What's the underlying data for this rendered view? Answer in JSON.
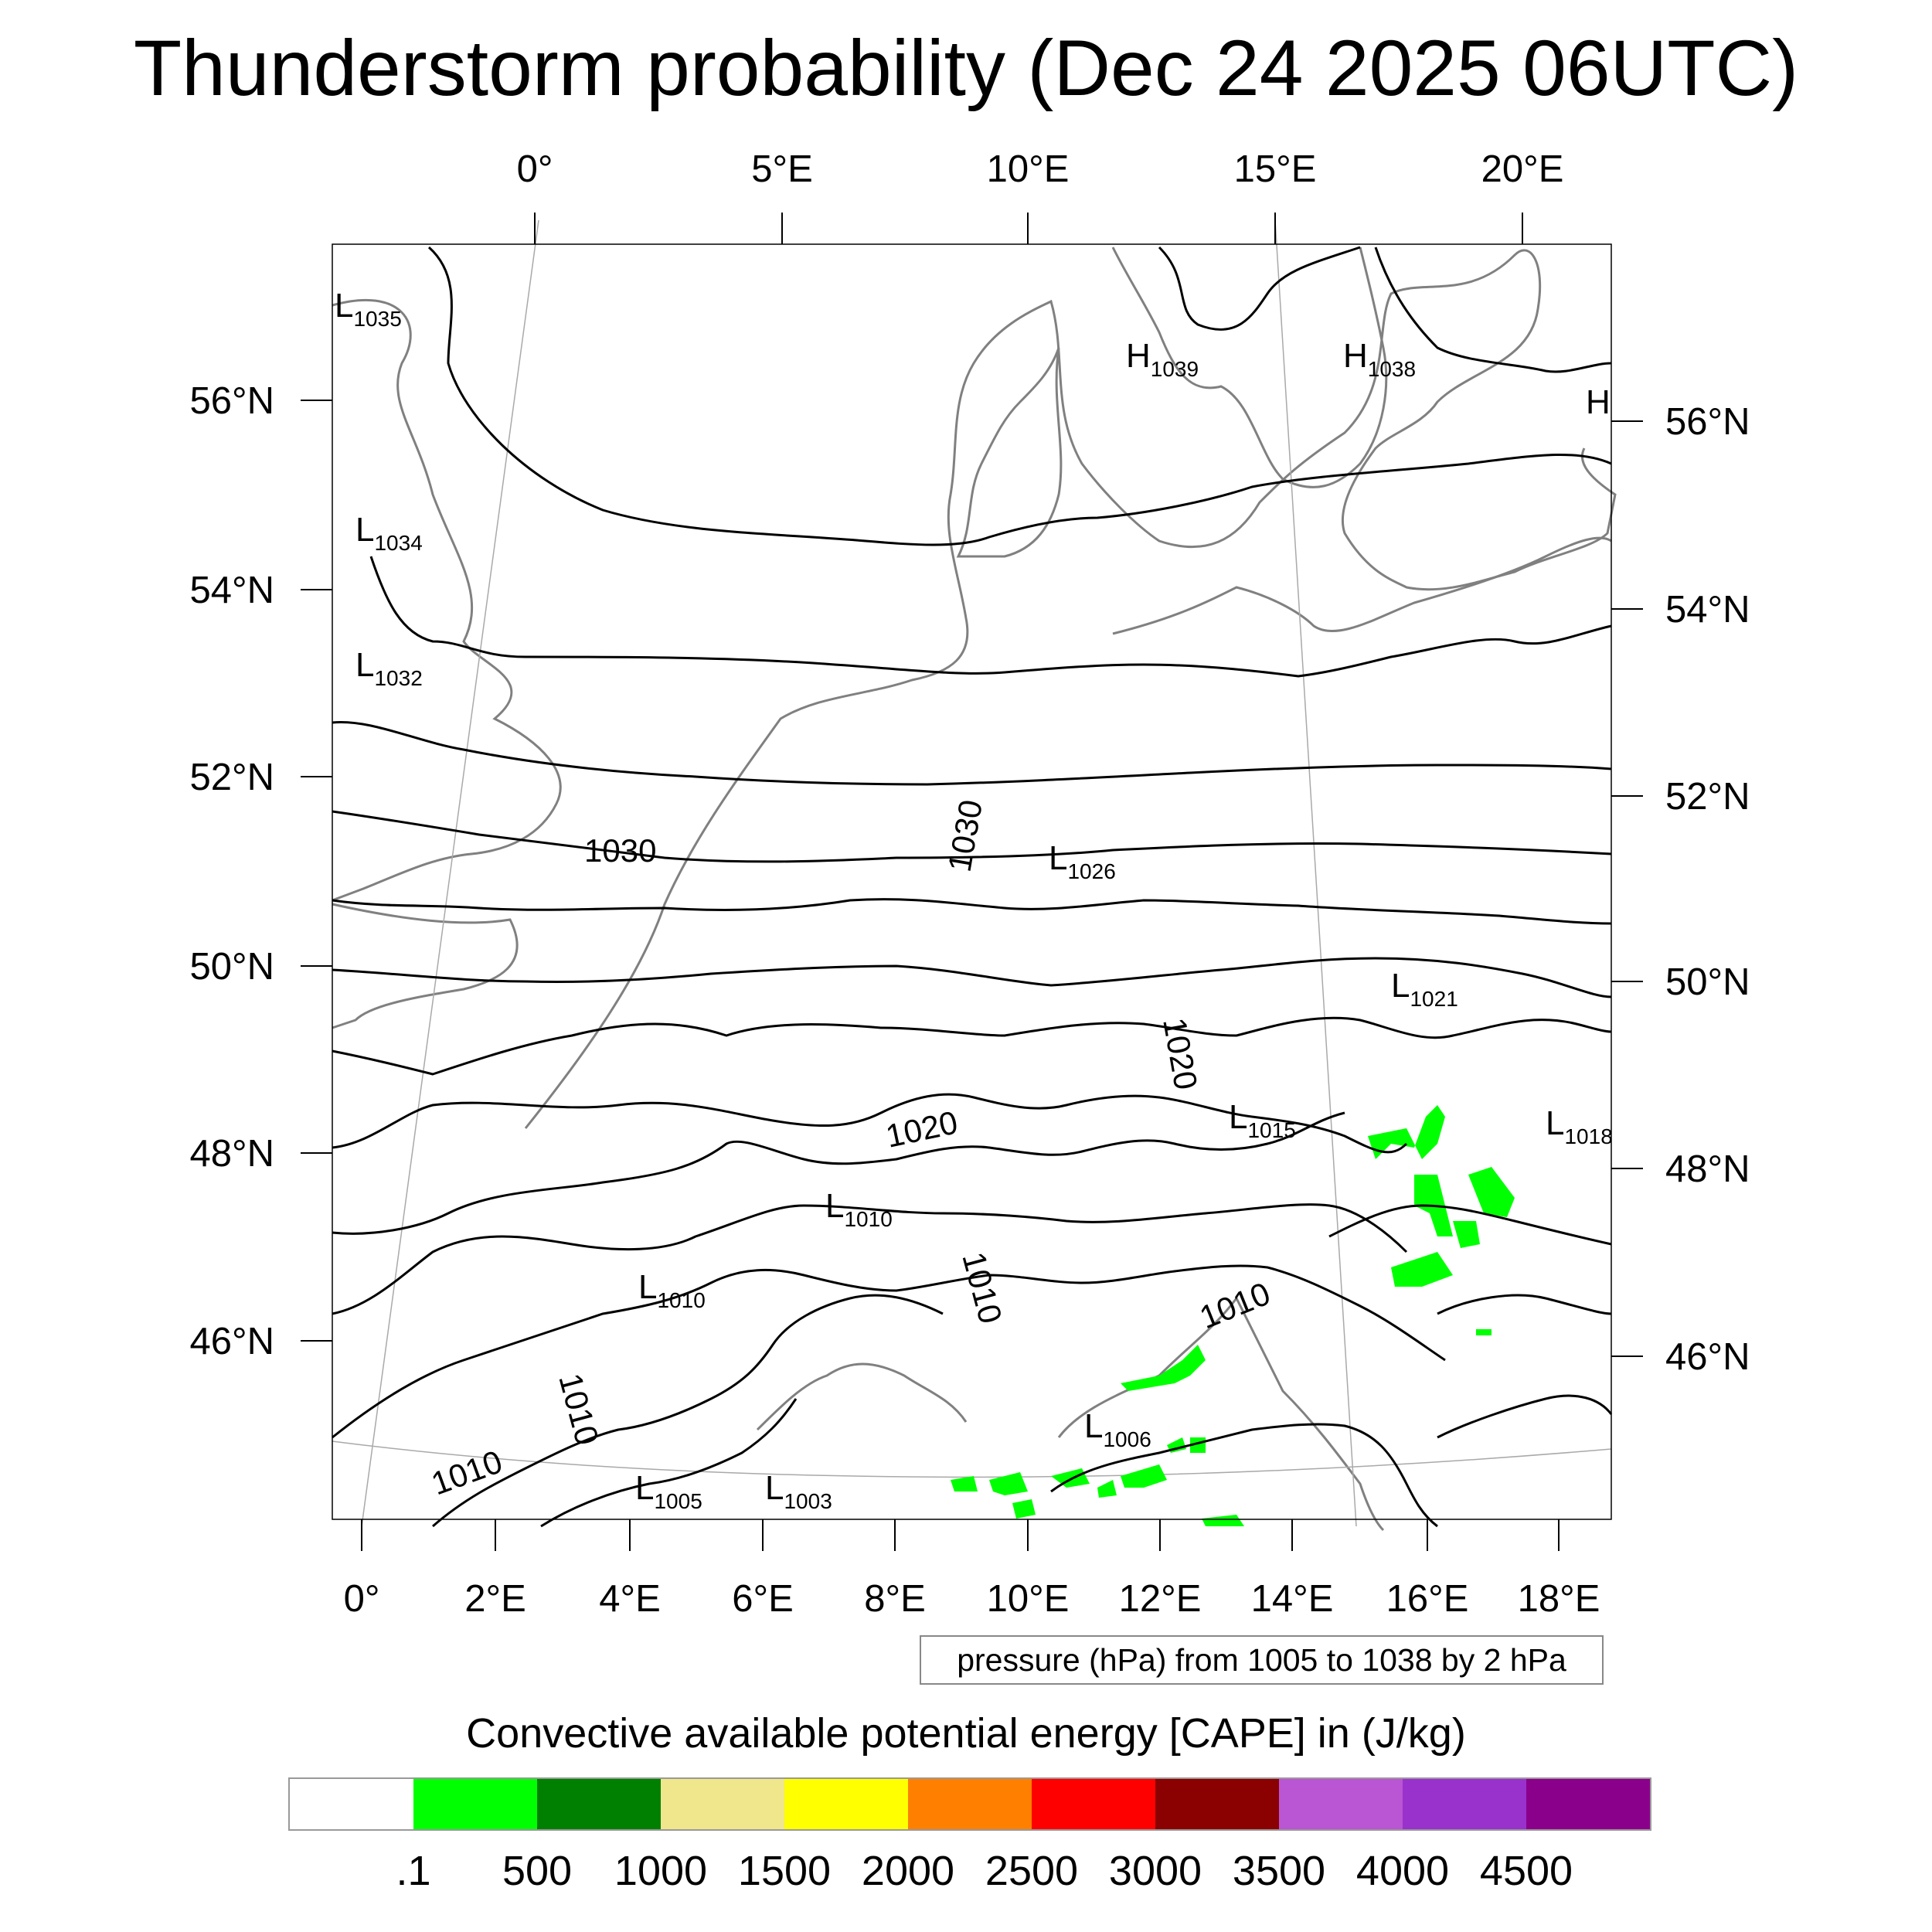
{
  "title": "Thunderstorm probability (Dec 24 2025 06UTC)",
  "top_axis_labels": [
    "0°",
    "5°E",
    "10°E",
    "15°E",
    "20°E"
  ],
  "bottom_axis_labels": [
    "0°",
    "2°E",
    "4°E",
    "6°E",
    "8°E",
    "10°E",
    "12°E",
    "14°E",
    "16°E",
    "18°E"
  ],
  "left_axis_labels": [
    "56°N",
    "54°N",
    "52°N",
    "50°N",
    "48°N",
    "46°N"
  ],
  "right_axis_labels": [
    "56°N",
    "54°N",
    "52°N",
    "50°N",
    "48°N",
    "46°N"
  ],
  "pressure_systems": [
    {
      "type": "L",
      "value": "1035"
    },
    {
      "type": "L",
      "value": "1034"
    },
    {
      "type": "L",
      "value": "1032"
    },
    {
      "type": "H",
      "value": "1039"
    },
    {
      "type": "H",
      "value": "1038"
    },
    {
      "type": "H",
      "value": ""
    },
    {
      "type": "L",
      "value": "1026"
    },
    {
      "type": "L",
      "value": "1021"
    },
    {
      "type": "L",
      "value": "1015"
    },
    {
      "type": "L",
      "value": "1018"
    },
    {
      "type": "L",
      "value": "1010"
    },
    {
      "type": "L",
      "value": "1010"
    },
    {
      "type": "L",
      "value": "1006"
    },
    {
      "type": "L",
      "value": "1005"
    },
    {
      "type": "L",
      "value": "1003"
    }
  ],
  "contour_labels": [
    "1030",
    "1030",
    "1020",
    "1020",
    "1010",
    "1010",
    "1010",
    "1010"
  ],
  "legend_note": "pressure (hPa) from 1005 to 1038 by 2 hPa",
  "colorbar": {
    "title": "Convective available potential energy [CAPE] in (J/kg)",
    "tick_labels": [
      ".1",
      "500",
      "1000",
      "1500",
      "2000",
      "2500",
      "3000",
      "3500",
      "4000",
      "4500"
    ],
    "colors": [
      "#ffffff",
      "#00ff00",
      "#008000",
      "#f0e68c",
      "#ffff00",
      "#ff8000",
      "#ff0000",
      "#8b0000",
      "#ba55d3",
      "#9932cc",
      "#8b008b"
    ]
  }
}
